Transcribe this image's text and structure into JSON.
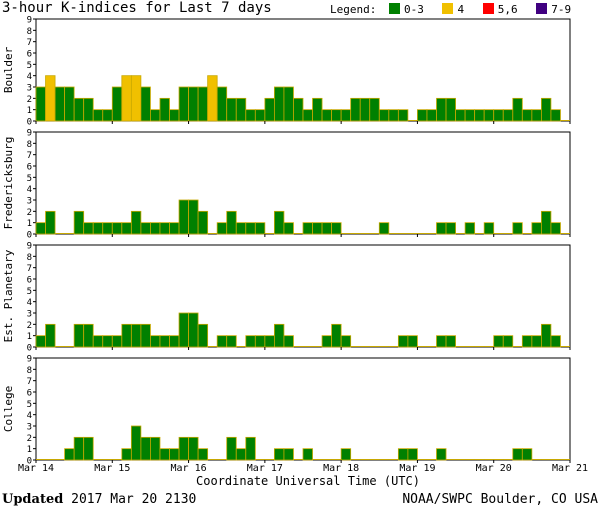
{
  "title": "3-hour K-indices for Last 7 days",
  "legend": {
    "label": "Legend:",
    "items": [
      {
        "label": "0-3",
        "color": "#008000"
      },
      {
        "label": "4",
        "color": "#f0c000"
      },
      {
        "label": "5,6",
        "color": "#ff0000"
      },
      {
        "label": "7-9",
        "color": "#400080"
      }
    ]
  },
  "footer": {
    "updated_label": "Updated",
    "updated_value": "2017 Mar 20 2130",
    "source": "NOAA/SWPC Boulder, CO USA"
  },
  "chart_data": {
    "type": "bar",
    "xlabel": "Coordinate Universal Time (UTC)",
    "x_ticks": [
      "Mar 14",
      "Mar 15",
      "Mar 16",
      "Mar 17",
      "Mar 18",
      "Mar 19",
      "Mar 20",
      "Mar 21"
    ],
    "y_ticks": [
      "0",
      "1",
      "2",
      "3",
      "4",
      "5",
      "6",
      "7",
      "8",
      "9"
    ],
    "ylim": [
      0,
      9
    ],
    "bars_per_panel": 56,
    "series": [
      {
        "name": "Boulder",
        "values": [
          3,
          4,
          3,
          3,
          2,
          2,
          1,
          1,
          3,
          4,
          4,
          3,
          1,
          2,
          1,
          3,
          3,
          3,
          4,
          3,
          2,
          2,
          1,
          1,
          2,
          3,
          3,
          2,
          1,
          2,
          1,
          1,
          1,
          2,
          2,
          2,
          1,
          1,
          1,
          0,
          1,
          1,
          2,
          2,
          1,
          1,
          1,
          1,
          1,
          1,
          2,
          1,
          1,
          2,
          1,
          0
        ]
      },
      {
        "name": "Fredericksburg",
        "values": [
          1,
          2,
          0,
          0,
          2,
          1,
          1,
          1,
          1,
          1,
          2,
          1,
          1,
          1,
          1,
          3,
          3,
          2,
          0,
          1,
          2,
          1,
          1,
          1,
          0,
          2,
          1,
          0,
          1,
          1,
          1,
          1,
          0,
          0,
          0,
          0,
          1,
          0,
          0,
          0,
          0,
          0,
          1,
          1,
          0,
          1,
          0,
          1,
          0,
          0,
          1,
          0,
          1,
          2,
          1,
          0
        ]
      },
      {
        "name": "Est. Planetary",
        "values": [
          1,
          2,
          0,
          0,
          2,
          2,
          1,
          1,
          1,
          2,
          2,
          2,
          1,
          1,
          1,
          3,
          3,
          2,
          0,
          1,
          1,
          0,
          1,
          1,
          1,
          2,
          1,
          0,
          0,
          0,
          1,
          2,
          1,
          0,
          0,
          0,
          0,
          0,
          1,
          1,
          0,
          0,
          1,
          1,
          0,
          0,
          0,
          0,
          1,
          1,
          0,
          1,
          1,
          2,
          1,
          0
        ]
      },
      {
        "name": "College",
        "values": [
          0,
          0,
          0,
          1,
          2,
          2,
          0,
          0,
          0,
          1,
          3,
          2,
          2,
          1,
          1,
          2,
          2,
          1,
          0,
          0,
          2,
          1,
          2,
          0,
          0,
          1,
          1,
          0,
          1,
          0,
          0,
          0,
          1,
          0,
          0,
          0,
          0,
          0,
          1,
          1,
          0,
          0,
          1,
          0,
          0,
          0,
          0,
          0,
          0,
          0,
          1,
          1,
          0,
          0,
          0,
          0
        ]
      }
    ]
  }
}
